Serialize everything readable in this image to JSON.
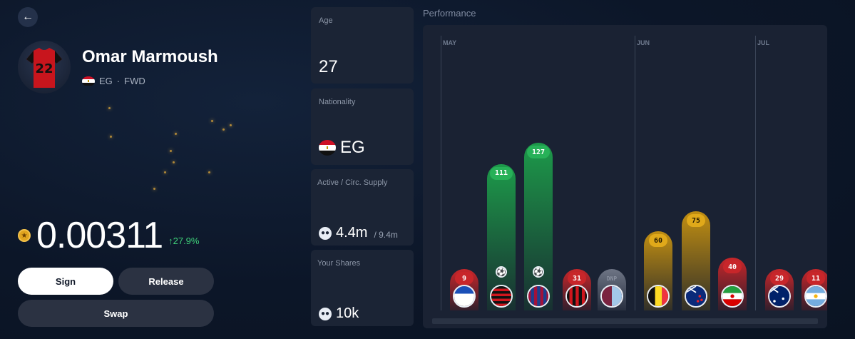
{
  "player": {
    "name": "Omar Marmoush",
    "country_code": "EG",
    "position": "FWD",
    "separator": "·",
    "jersey_number": "22"
  },
  "price": {
    "value": "0.00311",
    "change": "↑27.9%",
    "change_color": "#3fd17a"
  },
  "actions": {
    "sign_label": "Sign",
    "release_label": "Release",
    "swap_label": "Swap"
  },
  "stats": {
    "age": {
      "label": "Age",
      "value": "27"
    },
    "nationality": {
      "label": "Nationality",
      "value": "EG"
    },
    "supply": {
      "label": "Active / Circ. Supply",
      "active": "4.4m",
      "circ": "/ 9.4m"
    },
    "shares": {
      "label": "Your Shares",
      "value": "10k"
    }
  },
  "chart_data": {
    "type": "bar",
    "title": "Performance",
    "months": [
      "MAY",
      "JUN",
      "JUL"
    ],
    "values": [
      9,
      111,
      127,
      31,
      0,
      60,
      75,
      40,
      29,
      11
    ],
    "labels": [
      "9",
      "111",
      "127",
      "31",
      "DNP",
      "60",
      "75",
      "40",
      "29",
      "11"
    ],
    "colors": [
      "red",
      "green",
      "green",
      "red",
      "gray",
      "yellow",
      "yellow",
      "red",
      "red",
      "red"
    ],
    "goals": [
      false,
      true,
      true,
      false,
      false,
      false,
      false,
      false,
      false,
      false
    ],
    "opponents": [
      "white-blue",
      "red-black-stripes",
      "blue-red-stripes",
      "red-black-stripes-2",
      "claret-blue",
      "belgium",
      "new-zealand",
      "iran",
      "australia",
      "argentina"
    ]
  }
}
